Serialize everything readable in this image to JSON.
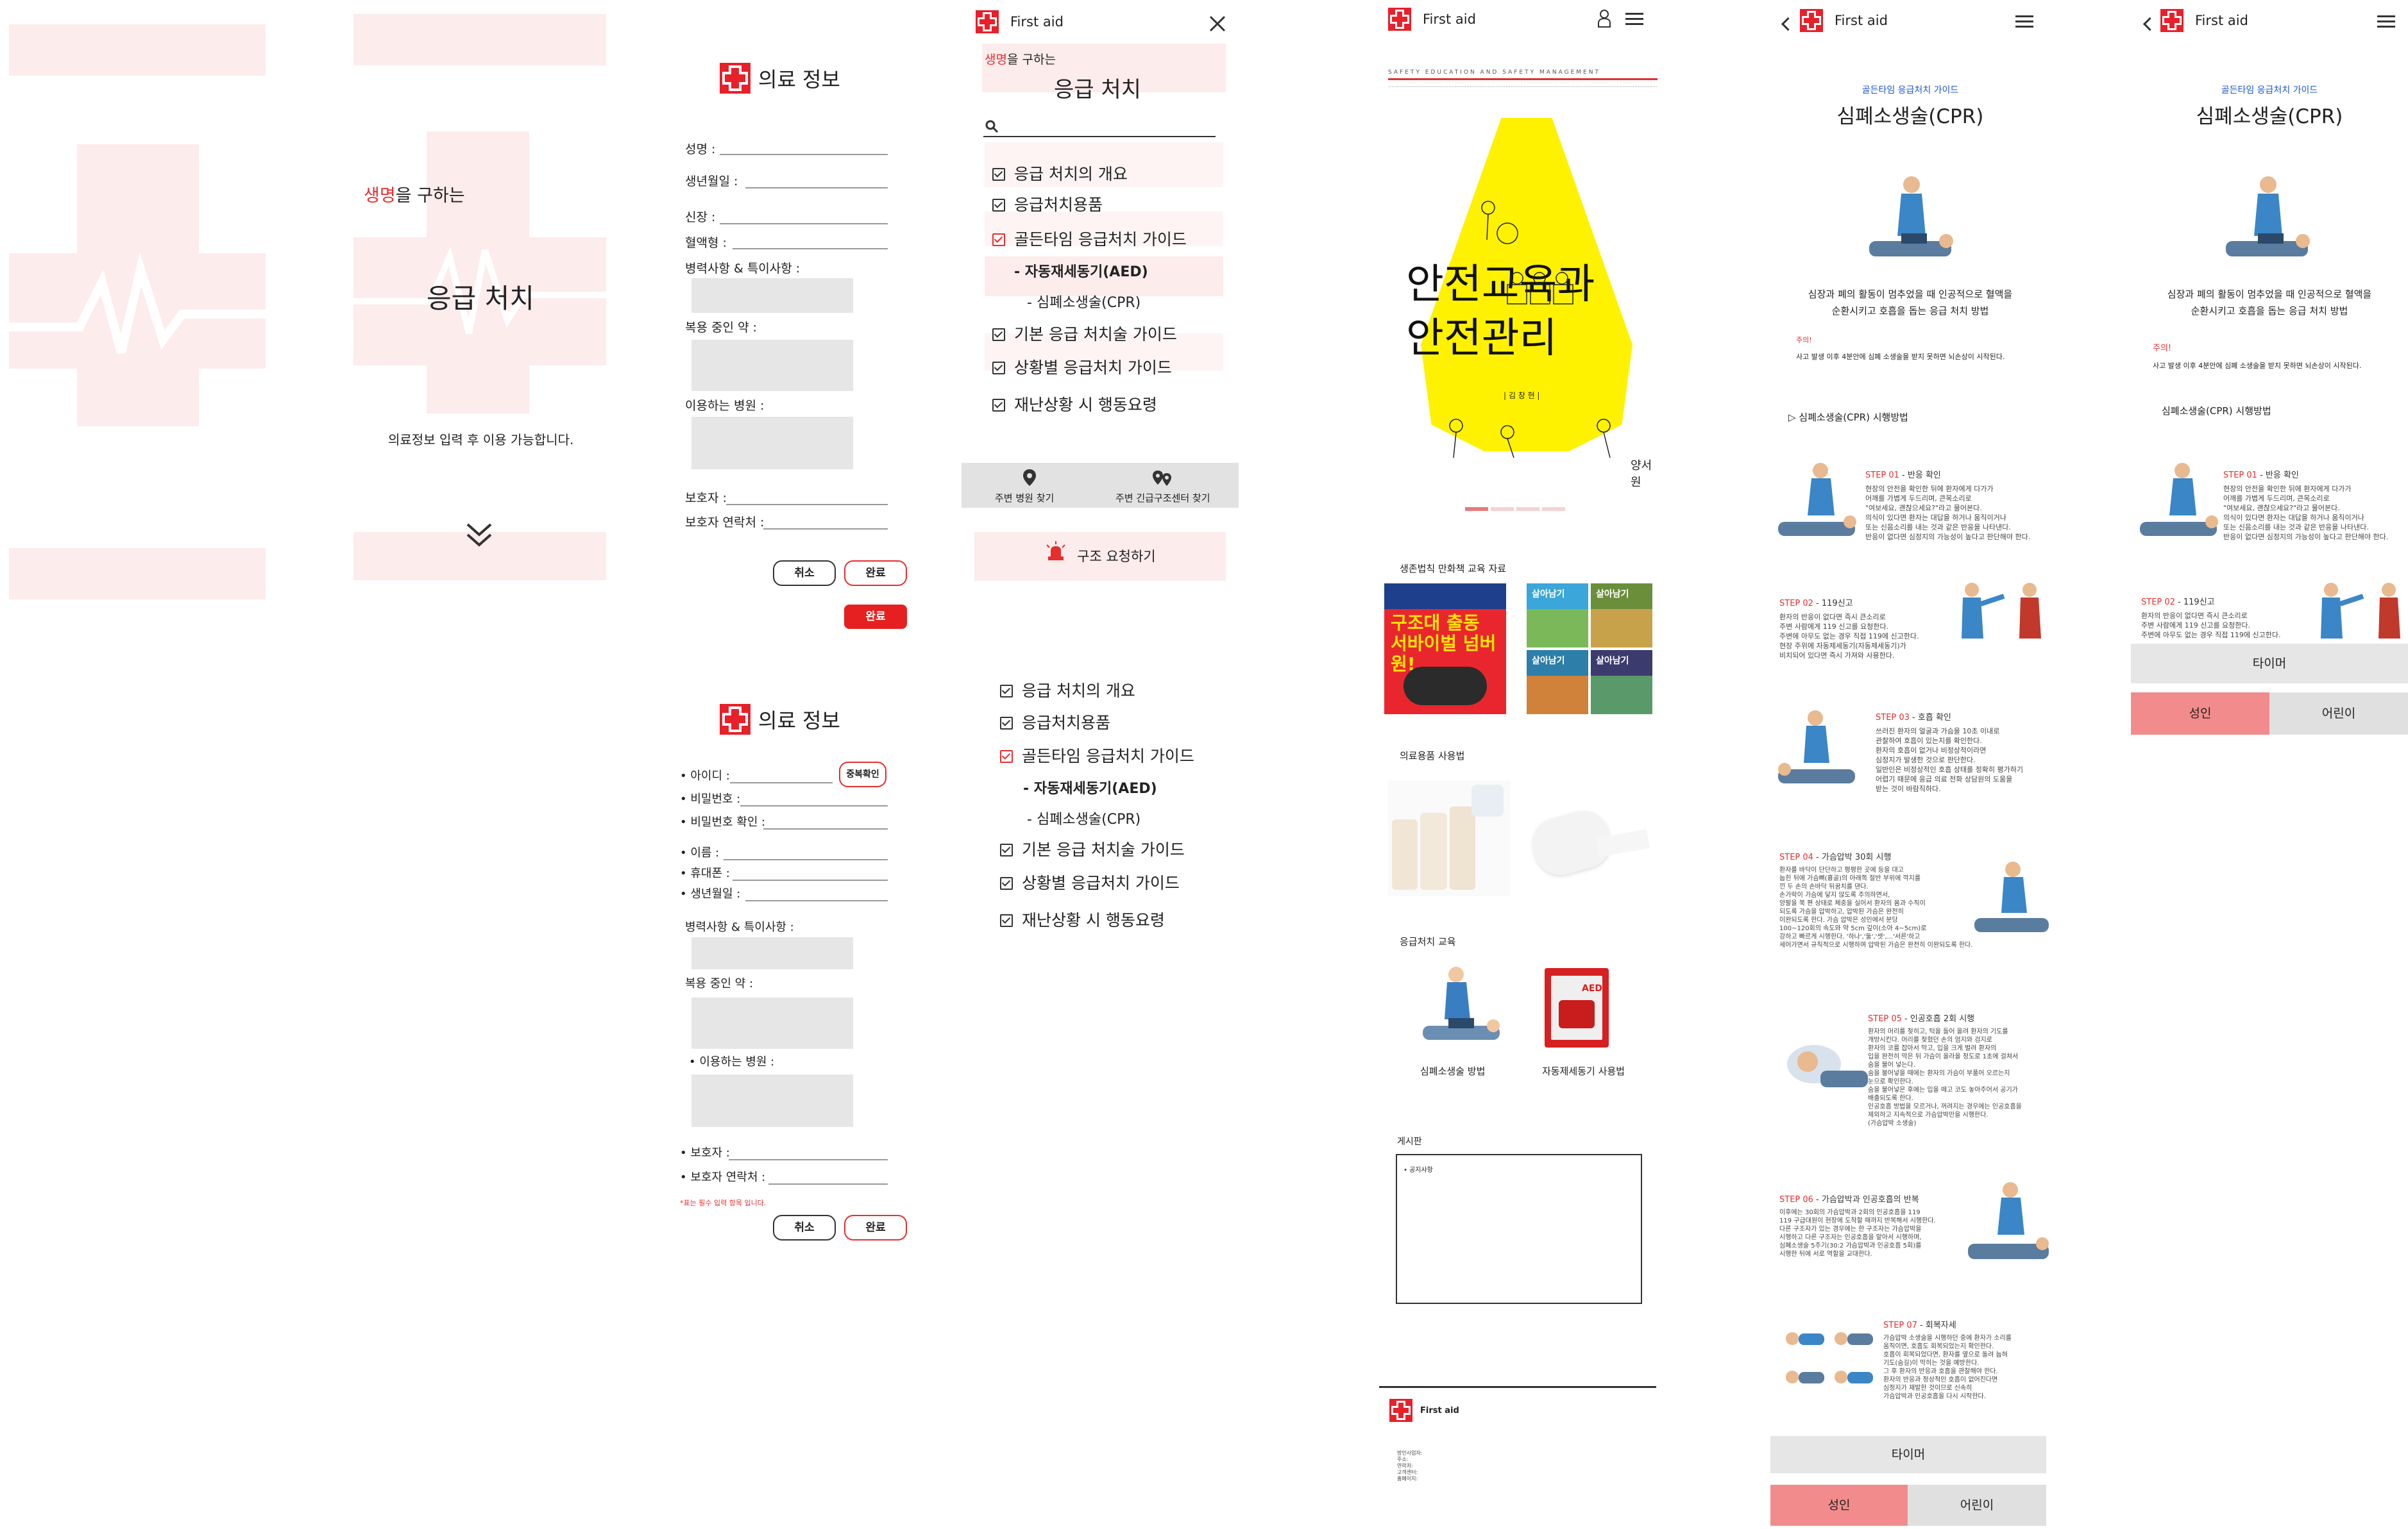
{
  "brand": {
    "name": "First aid",
    "color_red": "#e8202a",
    "color_pink": "#fdecec"
  },
  "splash": {
    "highlight": "생명",
    "subtitle_rest": "을 구하는",
    "title": "응급 처치",
    "notice": "의료정보 입력 후 이용 가능합니다.",
    "down_icon": "double-chevron-down-icon"
  },
  "medical_form": {
    "title": "의료 정보",
    "fields": [
      "성명 :",
      "생년월일 :",
      "신장 :",
      "혈액형 :"
    ],
    "history_label": "병력사항 & 특이사항 :",
    "meds_label": "복용 중인 약 :",
    "hospital_label": "이용하는 병원 :",
    "guardian_label": "보호자 :",
    "guardian_phone_label": "보호자 연락처 :",
    "cancel": "취소",
    "done": "완료",
    "done_active": "완료"
  },
  "signup_form": {
    "title": "의료 정보",
    "id_label": "아이디 :",
    "dup_check": "중복확인",
    "pw_label": "비밀번호 :",
    "pw_confirm_label": "비밀번호 확인 :",
    "name_label": "이름 :",
    "phone_label": "휴대폰 :",
    "birth_label": "생년월일 :",
    "history_label": "병력사항 & 특이사항 :",
    "meds_label": "복용 중인 약 :",
    "hospital_label": "이용하는 병원 :",
    "guardian_label": "보호자 :",
    "guardian_phone_label": "보호자 연락처 :",
    "required_note": "*표는 필수 입력 항목 입니다.",
    "cancel": "취소",
    "done": "완료"
  },
  "menu": {
    "app_title": "First aid",
    "subtitle_highlight": "생명",
    "subtitle_rest": "을 구하는",
    "title": "응급 처치",
    "items": [
      "응급 처치의 개요",
      "응급처치용품",
      "골든타임 응급처치 가이드",
      "자동재세동기(AED)",
      "심폐소생술(CPR)",
      "기본 응급 처치술 가이드",
      "상황별 응급처치 가이드",
      "재난상황 시 행동요령"
    ],
    "nearby_hospital": "주변 병원 찾기",
    "nearby_rescue": "주변 긴급구조센터 찾기",
    "rescue_request": "구조 요청하기"
  },
  "menu_list2": {
    "items": [
      "응급 처치의 개요",
      "응급처치용품",
      "골든타임 응급처치 가이드",
      "자동재세동기(AED)",
      "심폐소생술(CPR)",
      "기본 응급 처치술 가이드",
      "상황별 응급처치 가이드",
      "재난상황 시 행동요령"
    ]
  },
  "home": {
    "app_title": "First aid",
    "banner_caption": "SAFETY EDUCATION AND SAFETY MANAGEMENT",
    "banner_title_1": "안전교육과",
    "banner_title_2": "안전관리",
    "banner_author": "| 김 창 현 |",
    "banner_publisher": "양서원",
    "section_comics": "생존법칙 만화책 교육 자료",
    "comic_1": "구조대 출동 서바이벌 넘버원!",
    "comic_2": "살아남기",
    "comic_3": "살아남기",
    "comic_4": "살아남기",
    "comic_5": "살아남기",
    "section_supplies": "의료용품 사용법",
    "section_edu": "응급처치 교육",
    "cpr_label": "심폐소생술 방법",
    "aed_label": "자동제세동기 사용법",
    "aed_box_text": "AED",
    "board_title": "게시판",
    "board_item": "• 공지사항",
    "footer_brand": "First aid",
    "footer_lines": [
      "방인사업자:",
      "주소:",
      "연락처:",
      "고객센터:",
      "홈페이지:"
    ]
  },
  "cpr": {
    "app_title": "First aid",
    "category": "골든타임 응급처치 가이드",
    "title": "심폐소생술(CPR)",
    "desc_1": "심장과 폐의 활동이 멈추었을 때 인공적으로 혈액을",
    "desc_2": "순환시키고 호흡을 돕는 응급 처치 방법",
    "caution_label": "주의!",
    "caution_text": "사고 발생 이후 4분안에 심폐 소생술을 받지 못하면 뇌손상이 시작된다.",
    "howto": "▷ 심폐소생술(CPR) 시행방법",
    "howto2": "심폐소생술(CPR) 시행방법",
    "steps": [
      {
        "num": "STEP 01",
        "title": "반응 확인",
        "lines": [
          "현장의 안전을 확인한 뒤에 환자에게 다가가",
          "어깨를 가볍게 두드리며, 큰목소리로",
          "\"여보세요, 괜찮으세요?\"라고 물어본다.",
          "의식이 있다면 환자는 대답을 하거나 움직이거나",
          "또는 신음소리를 내는 것과 같은 반응을 나타낸다.",
          "반응이 없다면 심정지의 가능성이 높다고 판단해야 한다."
        ]
      },
      {
        "num": "STEP 02",
        "title": "119신고",
        "lines": [
          "환자의 반응이 없다면 즉시 큰소리로",
          "주변 사람에게 119 신고를 요청한다.",
          "주변에 아무도 없는 경우 직접 119에 신고한다.",
          "현장 주위에 자동제세동기(자동제세동기)가",
          "비치되어 있다면 즉시 가져와 사용한다."
        ]
      },
      {
        "num": "STEP 03",
        "title": "호흡 확인",
        "lines": [
          "쓰러진 환자의 얼굴과 가슴을 10초 이내로",
          "관찰하여 호흡이 있는지를 확인한다.",
          "환자의 호흡이 없거나 비정상적이라면",
          "심정지가 발생한 것으로 판단한다.",
          "일반인은 비정상적인 호흡 상태를 정확히 평가하기",
          "어렵기 때문에 응급 의료 전화 상담원의 도움을",
          "받는 것이 바람직하다."
        ]
      },
      {
        "num": "STEP 04",
        "title": "가슴압박 30회 시행",
        "lines": [
          "환자를 바닥이 단단하고 평평한 곳에 등을 대고",
          "눕힌 뒤에 가슴뼈(흉골)의 아래쪽 절반 부위에 깍지를",
          "낀 두 손의 손바닥 뒤꿈치를 댄다.",
          "손가락이 가슴에 닿지 않도록 주의하면서,",
          "양팔을 쭉 편 상태로 체중을 실어서 환자의 몸과 수직이",
          "되도록 가슴을 압박하고, 압박된 가슴은 완전히",
          "이완되도록 한다. 가슴 압박은 성인에서 분당",
          "100~120회의 속도와 약 5cm 깊이(소아 4~5cm)로",
          "강하고 빠르게 시행한다. '하나','둘','셋',...'서른'하고",
          "세어가면서 규칙적으로 시행하며 압박된 가슴은 완전히 이완되도록 한다."
        ]
      },
      {
        "num": "STEP 05",
        "title": "인공호흡 2회 시행",
        "lines": [
          "환자의 머리를 젖히고, 턱을 들어 올려 환자의 기도를",
          "개방시킨다. 머리를 젖혔던 손의 엄지와 검지로",
          "환자의 코를 잡아서 막고, 입을 크게 벌려 환자의",
          "입을 완전히 막은 뒤 가슴이 올라올 정도로 1초에 걸쳐서",
          "숨을 불어 넣는다.",
          "숨을 불어넣을 때에는 환자의 가슴이 부풀어 오르는지",
          "눈으로 확인한다.",
          "숨을 불어넣은 후에는 입을 떼고 코도 놓아주어서 공기가",
          "배출되도록 한다.",
          "인공호흡 방법을 모르거나, 꺼려지는 경우에는 인공호흡을",
          "제외하고 지속적으로 가슴압박만을 시행한다.",
          "(가슴압박 소생술)"
        ]
      },
      {
        "num": "STEP 06",
        "title": "가슴압박과 인공호흡의 반복",
        "lines": [
          "이후에는 30회의 가슴압박과 2회의 인공호흡을 119",
          "119 구급대원이 현장에 도착할 때까지 반복해서 시행한다.",
          "다른 구조자가 있는 경우에는 한 구조자는 가슴압박을",
          "시행하고 다른 구조자는 인공호흡을 맡아서 시행하며,",
          "심폐소생술 5주기(30:2 가슴압박과 인공호흡 5회)를",
          "시행한 뒤에 서로 역할을 교대한다."
        ]
      },
      {
        "num": "STEP 07",
        "title": "회복자세",
        "lines": [
          "가슴압박 소생술을 시행하던 중에 환자가 소리를",
          "움직이면, 호흡도 회복되었는지 확인한다.",
          "호흡이 회복되었다면, 환자를 옆으로 돌려 눕혀",
          "기도(숨길)이 막히는 것을 예방한다.",
          "그 후 환자의 반응과 호흡을 관찰해야 한다.",
          "환자의 반응과 정상적인 호흡이 없어진다면",
          "심정지가 재발한 것이므로 신속히",
          "가슴압박과 인공호흡을 다시 시작한다."
        ]
      }
    ],
    "timer": "타이머",
    "tab_adult": "성인",
    "tab_child": "어린이"
  },
  "cpr_short": {
    "app_title": "First aid",
    "category": "골든타임 응급처치 가이드",
    "title": "심폐소생술(CPR)",
    "desc_1": "심장과 폐의 활동이 멈추었을 때 인공적으로 혈액을",
    "desc_2": "순환시키고 호흡을 돕는 응급 처치 방법",
    "caution_label": "주의!",
    "caution_text": "사고 발생 이후 4분안에 심폐 소생술을 받지 못하면 뇌손상이 시작된다.",
    "howto": "심폐소생술(CPR) 시행방법",
    "step1_num": "STEP 01",
    "step1_title": "반응 확인",
    "step1_lines": [
      "현장의 안전을 확인한 뒤에 환자에게 다가가",
      "어깨를 가볍게 두드리며, 큰목소리로",
      "\"여보세요, 괜찮으세요?\"라고 물어본다.",
      "의식이 있다면 환자는 대답을 하거나 움직이거나",
      "또는 신음소리를 내는 것과 같은 반응을 나타낸다.",
      "반응이 없다면 심정지의 가능성이 높다고 판단해야 한다."
    ],
    "step2_num": "STEP 02",
    "step2_title": "119신고",
    "step2_lines": [
      "환자의 반응이 없다면 즉시 큰소리로",
      "주변 사람에게 119 신고를 요청한다.",
      "주변에 아무도 없는 경우 직접 119에 신고한다."
    ],
    "timer": "타이머",
    "tab_adult": "성인",
    "tab_child": "어린이"
  }
}
